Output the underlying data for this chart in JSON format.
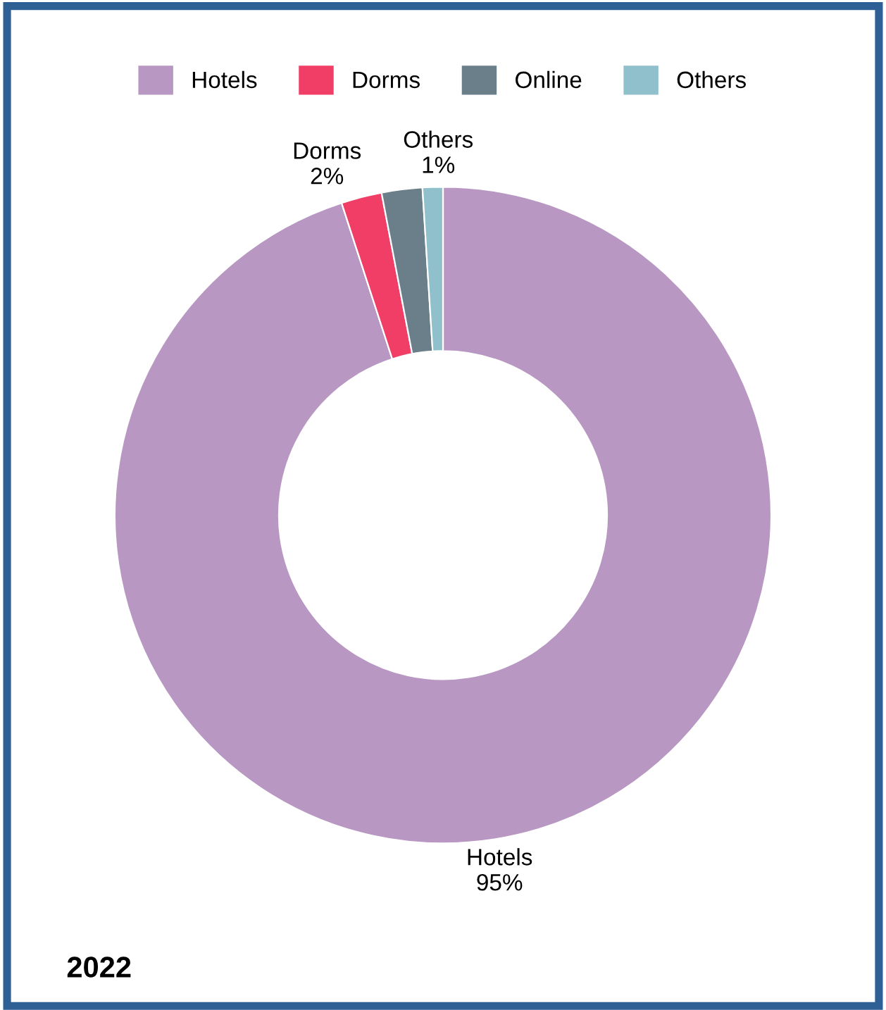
{
  "chart_data": {
    "type": "donut",
    "categories": [
      "Hotels",
      "Dorms",
      "Online",
      "Others"
    ],
    "values": [
      95,
      2,
      2,
      1
    ],
    "colors": [
      "#b897c2",
      "#f03e66",
      "#6a7f8a",
      "#8fc0cb"
    ],
    "value_labels": [
      "95%",
      "2%",
      null,
      "1%"
    ],
    "legend": "top",
    "annotations": [
      "2022"
    ]
  }
}
